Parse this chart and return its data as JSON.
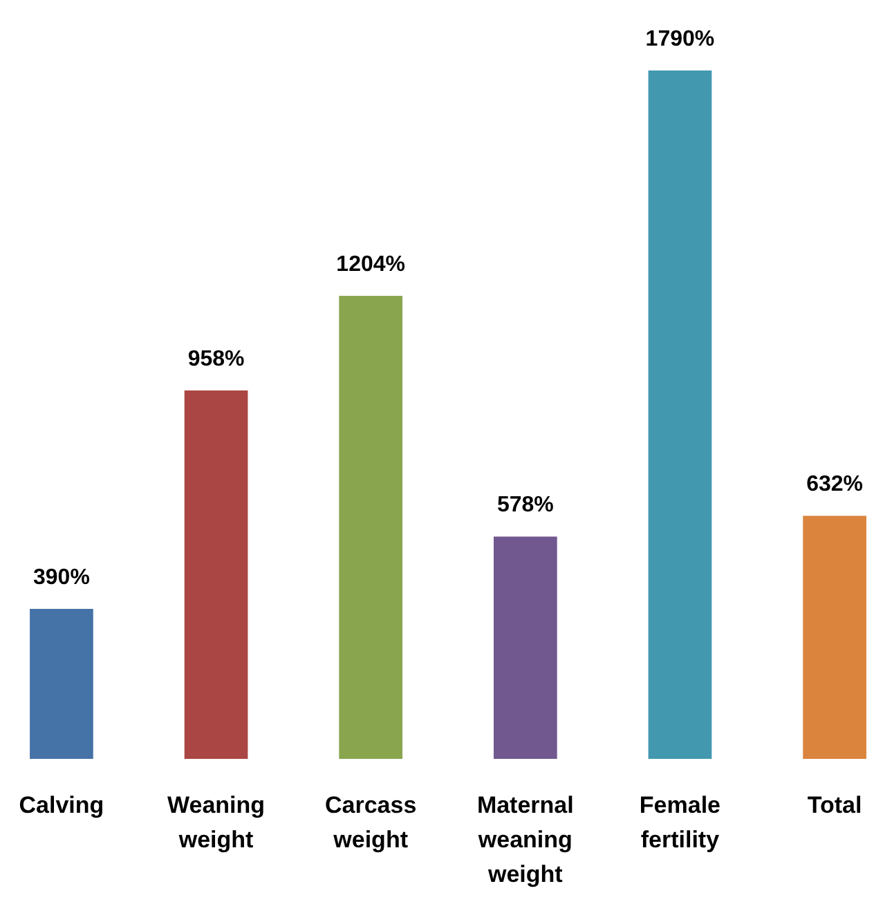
{
  "chart_data": {
    "type": "bar",
    "categories": [
      "Calving",
      "Weaning weight",
      "Carcass weight",
      "Maternal weaning weight",
      "Female fertility",
      "Total"
    ],
    "values": [
      390,
      958,
      1204,
      578,
      1790,
      632
    ],
    "colors": [
      "#4572a7",
      "#aa4643",
      "#89a54e",
      "#71588f",
      "#4198af",
      "#db843d"
    ],
    "value_labels": [
      "390%",
      "958%",
      "1204%",
      "578%",
      "1790%",
      "632%"
    ]
  }
}
